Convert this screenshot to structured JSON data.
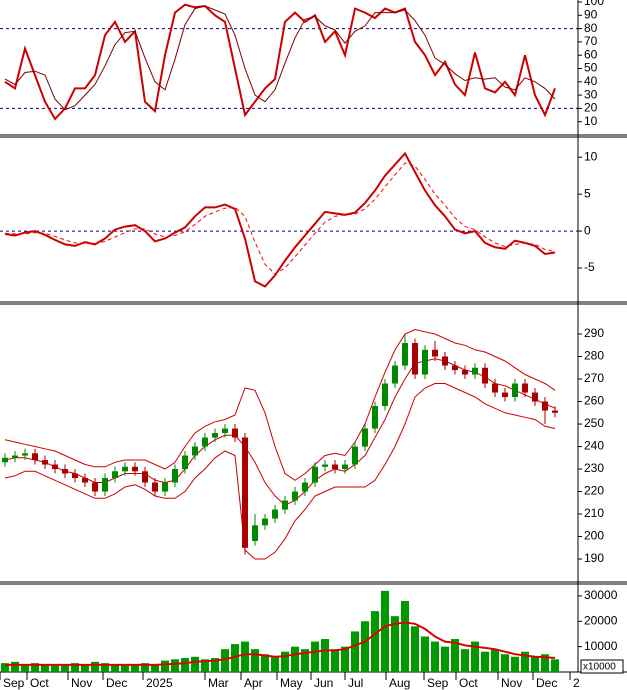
{
  "chart_data": [
    {
      "type": "line",
      "xlim": [
        -0.5,
        57.3
      ],
      "ylim": [
        0,
        101.5
      ],
      "yticks": [
        10,
        20,
        30,
        40,
        50,
        60,
        70,
        80,
        90,
        100
      ],
      "ref_lines": [
        80,
        20
      ],
      "ref_color": "#00008b",
      "series": [
        {
          "color": "#cc0000",
          "width": 2,
          "values": [
            40,
            35,
            65,
            45,
            25,
            12,
            20,
            35,
            35,
            45,
            75,
            85,
            70,
            78,
            25,
            18,
            60,
            92,
            98,
            96,
            97,
            90,
            85,
            50,
            15,
            25,
            35,
            42,
            85,
            92,
            85,
            90,
            70,
            78,
            60,
            95,
            92,
            88,
            95,
            92,
            95,
            70,
            60,
            45,
            55,
            38,
            30,
            62,
            35,
            32,
            40,
            30,
            60,
            30,
            15,
            35
          ]
        },
        {
          "color": "#800000",
          "width": 1,
          "values": [
            42,
            38,
            47,
            48,
            45,
            27,
            19,
            22,
            30,
            38,
            52,
            68,
            77,
            78,
            58,
            40,
            34,
            57,
            83,
            95,
            97,
            94,
            91,
            75,
            50,
            30,
            25,
            34,
            54,
            73,
            87,
            89,
            82,
            79,
            69,
            78,
            82,
            92,
            92,
            92,
            94,
            86,
            75,
            58,
            53,
            46,
            41,
            43,
            42,
            43,
            36,
            34,
            43,
            40,
            35,
            27
          ]
        }
      ]
    },
    {
      "type": "line",
      "xlim": [
        -0.5,
        57.3
      ],
      "ylim": [
        -9.6,
        12.6
      ],
      "yticks": [
        10,
        5,
        0,
        -5
      ],
      "ref_lines": [
        0
      ],
      "ref_color": "#00008b",
      "series": [
        {
          "color": "#cc0000",
          "width": 2,
          "values": [
            -0.4,
            -0.6,
            -0.2,
            0,
            -0.5,
            -1.2,
            -1.8,
            -2,
            -1.5,
            -1.8,
            -1,
            0.2,
            0.6,
            0.8,
            0,
            -1.4,
            -1,
            -0.2,
            0.5,
            2,
            3.2,
            3.2,
            3.6,
            3,
            -1,
            -6.8,
            -7.5,
            -6,
            -4,
            -2.2,
            -0.6,
            1,
            2.6,
            2.4,
            2.2,
            2.5,
            3.8,
            5.5,
            7.5,
            9,
            10.5,
            8,
            5.5,
            3.5,
            2,
            0.2,
            -0.3,
            0,
            -1.6,
            -2.2,
            -2.4,
            -1.3,
            -1.6,
            -2,
            -3.1,
            -2.9
          ]
        },
        {
          "color": "#ff0000",
          "width": 1,
          "dashed": true,
          "values": [
            -0.3,
            -0.4,
            -0.4,
            -0.2,
            -0.3,
            -0.7,
            -1.2,
            -1.6,
            -1.7,
            -1.7,
            -1.4,
            -0.8,
            -0.2,
            0.3,
            0.3,
            -0.4,
            -0.8,
            -0.6,
            -0.1,
            0.9,
            2,
            2.6,
            3.1,
            3.2,
            2,
            -1.5,
            -4.5,
            -5.8,
            -5,
            -3.5,
            -1.9,
            -0.3,
            1.2,
            2,
            2.2,
            2.3,
            3,
            4.3,
            6,
            7.6,
            9.2,
            8.8,
            7,
            5,
            3.5,
            1.8,
            0.6,
            0.2,
            -0.8,
            -1.6,
            -2.1,
            -1.8,
            -1.6,
            -1.8,
            -2.5,
            -2.8
          ]
        }
      ]
    },
    {
      "type": "candlestick",
      "xlim": [
        -0.5,
        57.3
      ],
      "ylim": [
        179.8,
        302.9
      ],
      "yticks": [
        190,
        200,
        210,
        220,
        230,
        240,
        250,
        260,
        270,
        280,
        290
      ],
      "up_color": "#008800",
      "down_color": "#aa0000",
      "open": [
        233,
        235,
        236,
        237,
        234,
        232,
        230,
        228,
        226,
        224,
        220,
        226,
        229,
        231,
        229,
        224,
        220,
        224,
        230,
        236,
        240,
        244,
        246,
        248,
        244,
        198,
        205,
        208,
        212,
        216,
        220,
        224,
        231,
        232,
        230,
        232,
        240,
        248,
        258,
        268,
        276,
        286,
        272,
        283,
        280,
        276,
        274,
        272,
        275,
        268,
        264,
        262,
        268,
        264,
        260,
        256
      ],
      "high": [
        237,
        238,
        239,
        239,
        236,
        234,
        232,
        230,
        228,
        226,
        228,
        231,
        233,
        233,
        231,
        226,
        226,
        232,
        238,
        242,
        246,
        248,
        250,
        250,
        246,
        210,
        210,
        214,
        218,
        222,
        226,
        233,
        234,
        234,
        234,
        242,
        250,
        260,
        270,
        278,
        290,
        288,
        285,
        287,
        282,
        278,
        276,
        277,
        277,
        270,
        266,
        270,
        270,
        266,
        262,
        258
      ],
      "low": [
        231,
        233,
        234,
        232,
        230,
        228,
        226,
        224,
        222,
        218,
        218,
        224,
        227,
        227,
        222,
        218,
        218,
        222,
        228,
        234,
        238,
        242,
        244,
        242,
        192,
        196,
        203,
        206,
        210,
        214,
        218,
        222,
        229,
        228,
        228,
        230,
        238,
        246,
        256,
        266,
        274,
        270,
        270,
        278,
        274,
        272,
        270,
        270,
        266,
        262,
        260,
        260,
        262,
        258,
        250,
        253
      ],
      "close": [
        235,
        236,
        237,
        234,
        232,
        230,
        228,
        226,
        224,
        220,
        226,
        229,
        231,
        229,
        224,
        220,
        224,
        230,
        236,
        240,
        244,
        246,
        248,
        244,
        195,
        205,
        208,
        212,
        216,
        220,
        224,
        231,
        232,
        230,
        232,
        240,
        248,
        258,
        268,
        276,
        286,
        272,
        283,
        280,
        276,
        274,
        272,
        275,
        268,
        264,
        262,
        268,
        264,
        260,
        256,
        255
      ],
      "bands": [
        {
          "color": "#cc0000",
          "values": [
            243,
            242,
            241,
            240,
            239,
            238,
            236,
            234,
            232,
            231,
            231,
            233,
            234,
            234,
            234,
            232,
            230,
            233,
            240,
            246,
            249,
            251,
            252,
            254,
            266,
            265,
            255,
            240,
            228,
            225,
            228,
            232,
            236,
            237,
            236,
            242,
            250,
            262,
            273,
            283,
            290,
            292,
            291,
            290,
            288,
            286,
            285,
            283,
            282,
            280,
            278,
            275,
            272,
            270,
            268,
            265
          ]
        },
        {
          "color": "#cc0000",
          "values": [
            234,
            235,
            235,
            234,
            233,
            231,
            229,
            228,
            226,
            224,
            224,
            226,
            228,
            228,
            228,
            225,
            224,
            225,
            230,
            236,
            240,
            243,
            245,
            245,
            240,
            233,
            224,
            218,
            214,
            216,
            220,
            225,
            228,
            230,
            229,
            232,
            236,
            244,
            252,
            262,
            270,
            277,
            278,
            279,
            278,
            276,
            274,
            273,
            271,
            268,
            267,
            265,
            263,
            261,
            259,
            257
          ]
        },
        {
          "color": "#cc0000",
          "values": [
            226,
            227,
            229,
            229,
            227,
            225,
            223,
            221,
            219,
            217,
            217,
            219,
            222,
            223,
            221,
            218,
            217,
            217,
            220,
            226,
            230,
            235,
            238,
            236,
            194,
            190,
            190,
            193,
            199,
            207,
            212,
            218,
            220,
            222,
            222,
            222,
            222,
            225,
            232,
            240,
            250,
            262,
            266,
            268,
            268,
            266,
            264,
            262,
            259,
            257,
            255,
            254,
            253,
            252,
            249,
            248
          ]
        }
      ]
    },
    {
      "type": "bar",
      "xlim": [
        -0.5,
        57.3
      ],
      "ylim": [
        0,
        34300
      ],
      "yticks": [
        10000,
        20000,
        30000
      ],
      "unit_label": "x10000",
      "color": "#009900",
      "values": [
        3500,
        4000,
        3000,
        3500,
        3000,
        2500,
        3000,
        3500,
        3000,
        4000,
        3500,
        3000,
        2500,
        3000,
        3500,
        3000,
        4500,
        5000,
        5500,
        6000,
        5000,
        5500,
        9000,
        11000,
        12000,
        9000,
        7000,
        6000,
        8000,
        10000,
        9000,
        12000,
        13000,
        9000,
        10000,
        16000,
        20000,
        24000,
        32000,
        22000,
        28000,
        18000,
        14000,
        12000,
        10000,
        13000,
        9000,
        12000,
        8000,
        9000,
        7000,
        6000,
        8000,
        6000,
        7000,
        5000
      ],
      "ma": {
        "color": "#dd0000",
        "values": [
          2800,
          2800,
          2800,
          2800,
          2800,
          2800,
          2800,
          2800,
          2800,
          2800,
          2800,
          2800,
          2800,
          2800,
          2800,
          2800,
          3000,
          3200,
          3500,
          4000,
          4300,
          4500,
          5000,
          6000,
          7000,
          7000,
          6500,
          6000,
          6200,
          7000,
          7500,
          8000,
          8500,
          8500,
          9000,
          10500,
          12000,
          15000,
          18000,
          19000,
          19500,
          19000,
          17000,
          14000,
          12000,
          11500,
          10500,
          10000,
          9500,
          9000,
          8000,
          7000,
          6500,
          6000,
          5800,
          5500
        ]
      },
      "xticks": [
        {
          "value": -0.5,
          "label": "Sep"
        },
        {
          "value": 2.2,
          "label": "Oct"
        },
        {
          "value": 6.3,
          "label": "Nov"
        },
        {
          "value": 9.8,
          "label": "Dec"
        },
        {
          "value": 13.8,
          "label": "2025"
        },
        {
          "value": 20,
          "label": "Mar"
        },
        {
          "value": 23.6,
          "label": "Apr"
        },
        {
          "value": 27.2,
          "label": "May"
        },
        {
          "value": 30.6,
          "label": "Jun"
        },
        {
          "value": 34,
          "label": "Jul"
        },
        {
          "value": 38.1,
          "label": "Aug"
        },
        {
          "value": 41.9,
          "label": "Sep"
        },
        {
          "value": 45.1,
          "label": "Oct"
        },
        {
          "value": 49.3,
          "label": "Nov"
        },
        {
          "value": 52.8,
          "label": "Dec"
        },
        {
          "value": 56.5,
          "label": "2"
        }
      ]
    }
  ]
}
